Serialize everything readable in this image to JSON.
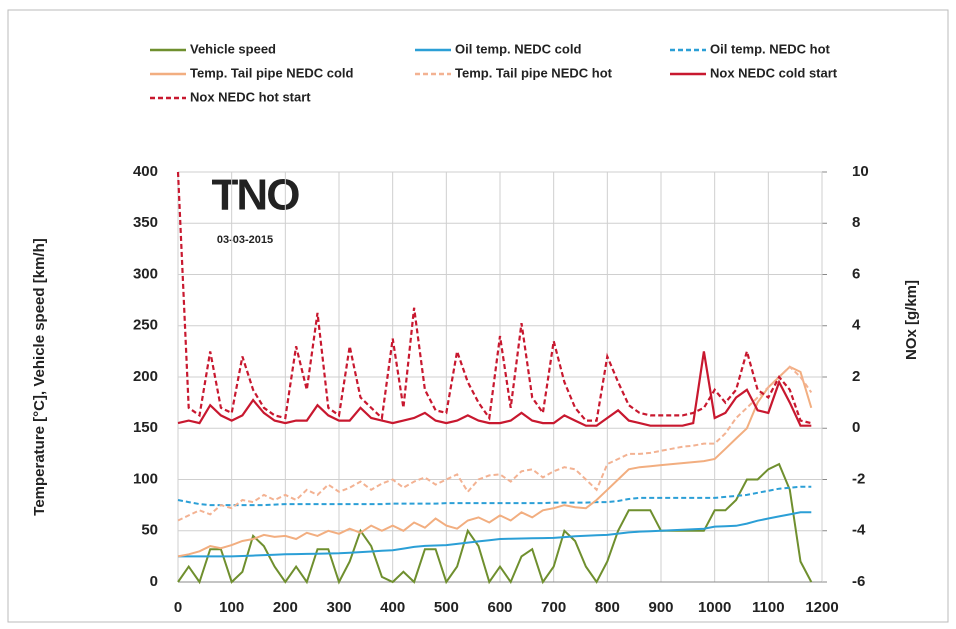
{
  "chart_data": {
    "type": "line",
    "annotations": [
      "TNO",
      "03-03-2015"
    ],
    "ylabel": "Temperature [°C], Vehicle speed [km/h]",
    "y2label": "NOx [g/km]",
    "x": [
      0,
      20,
      40,
      60,
      80,
      100,
      120,
      140,
      160,
      180,
      200,
      220,
      240,
      260,
      280,
      300,
      320,
      340,
      360,
      380,
      400,
      420,
      440,
      460,
      480,
      500,
      520,
      540,
      560,
      580,
      600,
      620,
      640,
      660,
      680,
      700,
      720,
      740,
      760,
      780,
      800,
      820,
      840,
      860,
      880,
      900,
      920,
      940,
      960,
      980,
      1000,
      1020,
      1040,
      1060,
      1080,
      1100,
      1120,
      1140,
      1160,
      1180
    ],
    "xlim": [
      0,
      1200
    ],
    "xticks": [
      0,
      100,
      200,
      300,
      400,
      500,
      600,
      700,
      800,
      900,
      1000,
      1100,
      1200
    ],
    "ylim": [
      0,
      400
    ],
    "yticks": [
      0,
      50,
      100,
      150,
      200,
      250,
      300,
      350,
      400
    ],
    "y2lim": [
      -6,
      10
    ],
    "y2ticks": [
      -6,
      -4,
      -2,
      0,
      2,
      4,
      6,
      8,
      10
    ],
    "grid": true,
    "series": [
      {
        "name": "Vehicle speed",
        "color": "#6f8f2e",
        "dashed": false,
        "values": [
          0,
          15,
          0,
          32,
          32,
          0,
          10,
          45,
          35,
          15,
          0,
          15,
          0,
          32,
          32,
          0,
          20,
          50,
          35,
          5,
          0,
          10,
          0,
          32,
          32,
          0,
          15,
          50,
          35,
          0,
          15,
          0,
          25,
          32,
          0,
          15,
          50,
          40,
          15,
          0,
          20,
          50,
          70,
          70,
          70,
          50,
          50,
          50,
          50,
          50,
          70,
          70,
          80,
          100,
          100,
          110,
          115,
          90,
          20,
          0
        ]
      },
      {
        "name": "Oil temp. NEDC cold",
        "color": "#2b9fd6",
        "dashed": false,
        "values": [
          25,
          25,
          25,
          25,
          25,
          25,
          25.4,
          25.8,
          26.2,
          26.6,
          27,
          27.2,
          27.4,
          27.6,
          27.8,
          28,
          28.6,
          29.2,
          29.8,
          30.4,
          31,
          32.6,
          34.2,
          35.2,
          35.6,
          36,
          37.2,
          38.4,
          39.6,
          40.8,
          42,
          42.2,
          42.4,
          42.6,
          42.8,
          43,
          43.8,
          44.6,
          45.2,
          45.6,
          46,
          47.2,
          48.4,
          49.2,
          49.6,
          50,
          50.5,
          51,
          51.5,
          52,
          54,
          54.4,
          54.8,
          57,
          59.8,
          62,
          64,
          66,
          68,
          68
        ]
      },
      {
        "name": "Oil temp. NEDC hot",
        "color": "#2b9fd6",
        "dashed": true,
        "values": [
          80,
          78,
          76,
          75,
          75,
          75,
          75,
          75,
          75,
          75.5,
          76,
          76,
          76,
          76,
          76,
          76,
          76,
          76,
          76,
          76,
          76.5,
          76.5,
          76.5,
          76.5,
          76.5,
          77,
          77,
          77,
          77,
          77,
          77,
          77,
          77,
          77,
          77,
          77.5,
          77.5,
          77.5,
          77.5,
          78,
          78,
          79,
          81,
          82,
          82,
          82,
          82,
          82,
          82,
          82,
          82,
          83,
          84,
          85,
          87,
          89,
          91,
          92,
          93,
          93
        ]
      },
      {
        "name": "Temp. Tail pipe NEDC cold",
        "color": "#f2ae80",
        "dashed": false,
        "values": [
          25,
          27,
          30,
          35,
          33,
          36,
          40,
          42,
          46,
          44,
          45,
          42,
          48,
          45,
          50,
          47,
          52,
          48,
          55,
          50,
          55,
          50,
          58,
          53,
          62,
          55,
          52,
          60,
          63,
          58,
          65,
          60,
          68,
          63,
          70,
          72,
          75,
          73,
          72,
          80,
          90,
          100,
          110,
          112,
          113,
          114,
          115,
          116,
          117,
          118,
          120,
          130,
          140,
          150,
          175,
          190,
          200,
          210,
          205,
          170
        ]
      },
      {
        "name": "Temp. Tail pipe NEDC hot",
        "color": "#f3b292",
        "dashed": true,
        "values": [
          60,
          65,
          70,
          66,
          75,
          72,
          80,
          78,
          85,
          80,
          85,
          80,
          90,
          85,
          95,
          88,
          92,
          98,
          90,
          96,
          100,
          92,
          98,
          102,
          95,
          100,
          105,
          88,
          100,
          104,
          105,
          98,
          108,
          110,
          102,
          108,
          112,
          110,
          100,
          90,
          115,
          120,
          125,
          125,
          126,
          128,
          130,
          132,
          133,
          135,
          135,
          145,
          160,
          170,
          180,
          190,
          200,
          210,
          200,
          185
        ]
      },
      {
        "name": "Nox NEDC cold start",
        "color": "#c8182f",
        "dashed": false,
        "axis": "y2",
        "values": [
          0.2,
          0.3,
          0.2,
          0.9,
          0.5,
          0.3,
          0.5,
          1.1,
          0.6,
          0.3,
          0.2,
          0.3,
          0.3,
          0.9,
          0.5,
          0.3,
          0.3,
          0.8,
          0.4,
          0.3,
          0.2,
          0.3,
          0.4,
          0.6,
          0.3,
          0.2,
          0.3,
          0.5,
          0.3,
          0.2,
          0.2,
          0.3,
          0.6,
          0.3,
          0.2,
          0.2,
          0.5,
          0.3,
          0.1,
          0.1,
          0.4,
          0.7,
          0.3,
          0.2,
          0.1,
          0.1,
          0.1,
          0.1,
          0.2,
          3.0,
          0.4,
          0.6,
          1.2,
          1.5,
          0.7,
          0.6,
          1.8,
          1.0,
          0.1,
          0.1
        ]
      },
      {
        "name": "Nox NEDC hot start",
        "color": "#c8182f",
        "dashed": true,
        "axis": "y2",
        "values": [
          10,
          0.8,
          0.5,
          3,
          0.8,
          0.6,
          2.8,
          1.5,
          0.8,
          0.5,
          0.4,
          3.2,
          1.5,
          4.5,
          0.8,
          0.5,
          3.2,
          1.2,
          0.8,
          0.4,
          3.5,
          0.8,
          4.7,
          1.5,
          0.7,
          0.6,
          3.0,
          1.8,
          1.0,
          0.4,
          3.6,
          0.8,
          4.1,
          1.2,
          0.6,
          3.4,
          1.8,
          0.8,
          0.3,
          0.3,
          2.8,
          1.8,
          0.9,
          0.6,
          0.5,
          0.5,
          0.5,
          0.5,
          0.6,
          0.8,
          1.5,
          1.0,
          1.5,
          3.0,
          1.5,
          1.2,
          2.0,
          1.5,
          0.3,
          0.2
        ]
      }
    ]
  }
}
